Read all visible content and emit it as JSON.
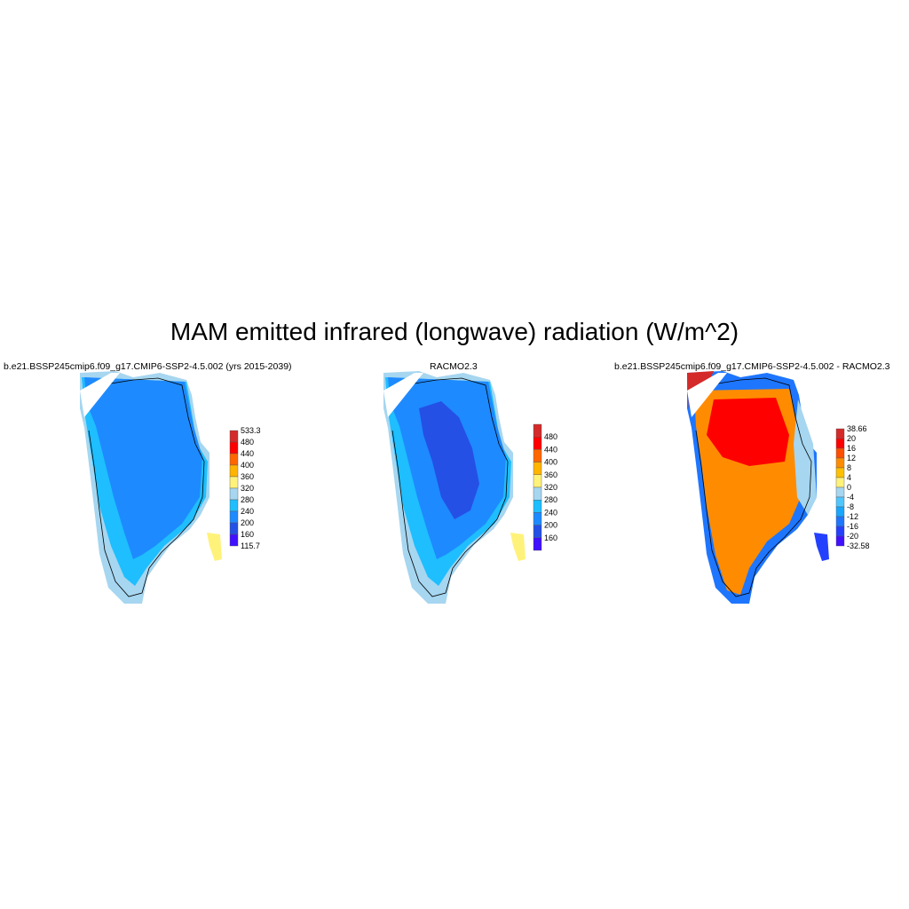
{
  "figure": {
    "title": "MAM emitted infrared (longwave) radiation (W/m^2)"
  },
  "chart_data": [
    {
      "type": "heatmap",
      "title": "b.e21.BSSP245cmip6.f09_g17.CMIP6-SSP2-4.5.002 (yrs 2015-2039)",
      "region": "Greenland",
      "colorbar": {
        "labels": [
          "533.3",
          "480",
          "440",
          "400",
          "360",
          "320",
          "280",
          "240",
          "200",
          "160",
          "115.7"
        ],
        "colors": [
          "#d42a2a",
          "#ff0000",
          "#ff6600",
          "#ffb400",
          "#fff27a",
          "#a6d6f0",
          "#1ebeff",
          "#1e8aff",
          "#2450e6",
          "#4010ff"
        ]
      },
      "dominant_range": "200-240"
    },
    {
      "type": "heatmap",
      "title": "RACMO2.3",
      "region": "Greenland",
      "colorbar": {
        "labels": [
          "480",
          "440",
          "400",
          "360",
          "320",
          "280",
          "240",
          "200",
          "160"
        ],
        "colors": [
          "#d42a2a",
          "#ff0000",
          "#ff6600",
          "#ffb400",
          "#fff27a",
          "#a6d6f0",
          "#1ebeff",
          "#1e8aff",
          "#2450e6",
          "#4010ff"
        ]
      },
      "dominant_range": "200-240"
    },
    {
      "type": "heatmap",
      "title": "b.e21.BSSP245cmip6.f09_g17.CMIP6-SSP2-4.5.002 - RACMO2.3",
      "region": "Greenland",
      "colorbar": {
        "labels": [
          "38.66",
          "20",
          "16",
          "12",
          "8",
          "4",
          "0",
          "-4",
          "-8",
          "-12",
          "-16",
          "-20",
          "-32.58"
        ],
        "colors": [
          "#d42a2a",
          "#ff0000",
          "#ff4e00",
          "#ff8c00",
          "#ffc000",
          "#fff27a",
          "#a6d6f0",
          "#50c6ff",
          "#18a6ff",
          "#1e76ff",
          "#2440ff",
          "#4010ff"
        ]
      },
      "dominant_range": "8-20"
    }
  ]
}
